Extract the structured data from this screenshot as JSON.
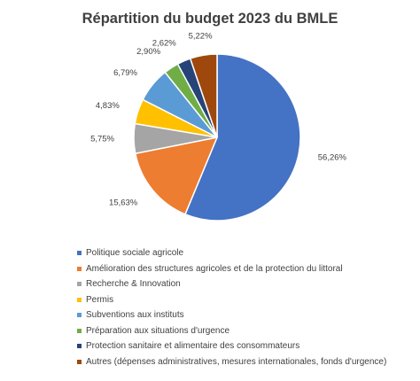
{
  "chart_data": {
    "type": "pie",
    "title": "Répartition du budget 2023 du BMLE",
    "slices": [
      {
        "label": "Politique sociale agricole",
        "value": 56.26,
        "display": "56,26%",
        "color": "#4472C4"
      },
      {
        "label": "Amélioration des structures agricoles et de la protection du littoral",
        "value": 15.63,
        "display": "15,63%",
        "color": "#ED7D31"
      },
      {
        "label": "Recherche & Innovation",
        "value": 5.75,
        "display": "5,75%",
        "color": "#A5A5A5"
      },
      {
        "label": "Permis",
        "value": 4.83,
        "display": "4,83%",
        "color": "#FFC000"
      },
      {
        "label": "Subventions aux instituts",
        "value": 6.79,
        "display": "6,79%",
        "color": "#5B9BD5"
      },
      {
        "label": "Préparation aux situations d'urgence",
        "value": 2.9,
        "display": "2,90%",
        "color": "#70AD47"
      },
      {
        "label": "Protection sanitaire et alimentaire des consommateurs",
        "value": 2.62,
        "display": "2,62%",
        "color": "#264478"
      },
      {
        "label": "Autres (dépenses administratives, mesures internationales, fonds d'urgence)",
        "value": 5.22,
        "display": "5,22%",
        "color": "#9E480E"
      }
    ],
    "legend_position": "bottom",
    "start_angle_deg": 0,
    "direction": "clockwise"
  }
}
